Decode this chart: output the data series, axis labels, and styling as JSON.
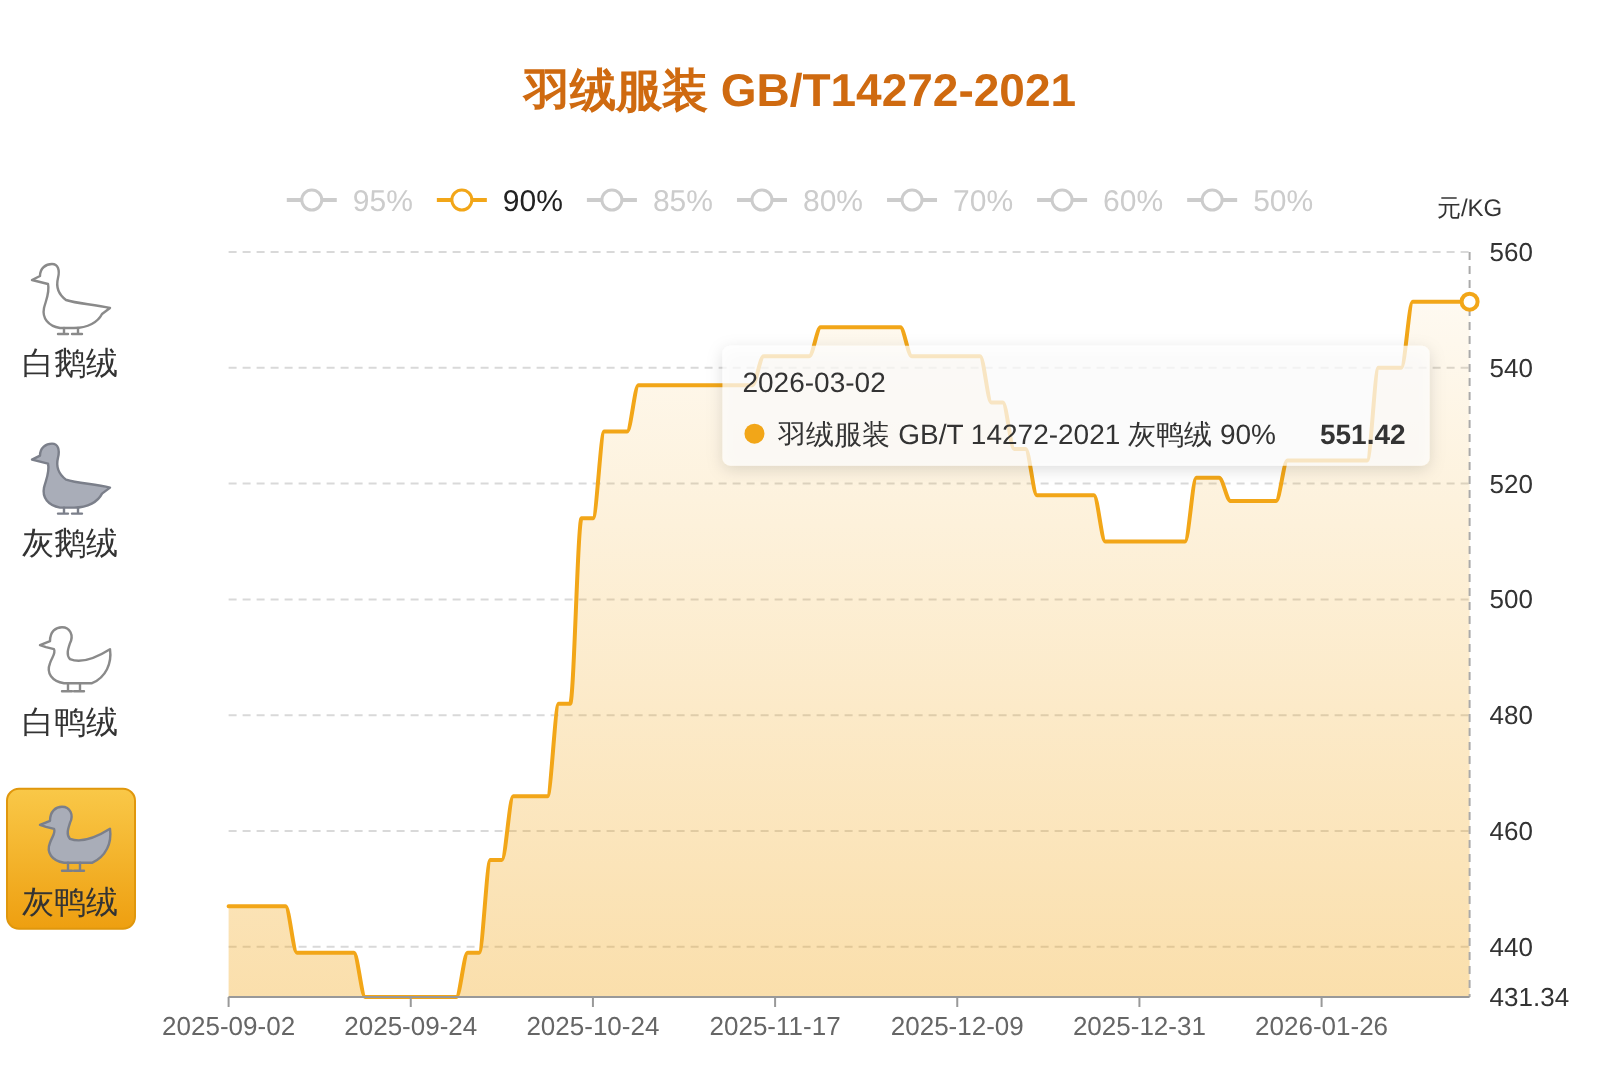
{
  "chart_data": [
    {
      "type": "area",
      "title": "羽绒服装 GB/T14272-2021",
      "ylabel": "元/KG",
      "categories": [
        "2025-09-02",
        null,
        null,
        null,
        null,
        null,
        null,
        null,
        null,
        null,
        null,
        null,
        null,
        null,
        null,
        null,
        "2025-09-24",
        null,
        null,
        null,
        null,
        null,
        null,
        null,
        null,
        null,
        null,
        null,
        null,
        null,
        null,
        null,
        "2025-10-24",
        null,
        null,
        null,
        null,
        null,
        null,
        null,
        null,
        null,
        null,
        null,
        null,
        null,
        null,
        null,
        "2025-11-17",
        null,
        null,
        null,
        null,
        null,
        null,
        null,
        null,
        null,
        null,
        null,
        null,
        null,
        null,
        null,
        "2025-12-09",
        null,
        null,
        null,
        null,
        null,
        null,
        null,
        null,
        null,
        null,
        null,
        null,
        null,
        null,
        null,
        "2025-12-31",
        null,
        null,
        null,
        null,
        null,
        null,
        null,
        null,
        null,
        null,
        null,
        null,
        null,
        null,
        null,
        "2026-01-26",
        null,
        null,
        null,
        null,
        null,
        null,
        null,
        null,
        null,
        null,
        null,
        null,
        null
      ],
      "series": [
        {
          "name": "95%",
          "color": "#cccccc",
          "values": [
            null,
            null,
            null,
            null,
            null,
            null,
            null,
            null,
            null,
            null,
            null,
            null,
            null,
            null,
            null,
            null,
            null,
            null,
            null,
            null,
            null,
            null,
            null,
            null,
            null,
            null,
            null,
            null,
            null,
            null,
            null,
            null,
            null,
            null,
            null,
            null,
            null,
            null,
            null,
            null,
            null,
            null,
            null,
            null,
            null,
            null,
            null,
            null,
            null,
            null,
            null,
            null,
            null,
            null,
            null,
            null,
            null,
            null,
            null,
            null,
            null,
            null,
            null,
            null,
            null,
            null,
            null,
            null,
            null,
            null,
            null,
            null,
            null,
            null,
            null,
            null,
            null,
            null,
            null,
            null,
            null,
            null,
            null,
            null,
            null,
            null,
            null,
            null,
            null,
            null,
            null,
            null,
            null,
            null,
            null,
            null,
            null,
            null,
            null,
            null,
            null,
            null,
            null,
            null,
            null,
            null,
            null,
            null,
            null,
            null
          ]
        },
        {
          "name": "90%",
          "color": "#f2a618",
          "values": [
            447,
            447,
            447,
            447,
            447,
            447,
            439,
            439,
            439,
            439,
            439,
            439,
            431.34,
            431.34,
            431.34,
            431.34,
            431.34,
            431.34,
            431.34,
            431.34,
            431.34,
            439,
            439,
            455,
            455,
            466,
            466,
            466,
            466,
            482,
            482,
            514,
            514,
            529,
            529,
            529,
            537,
            537,
            537,
            537,
            537,
            537,
            537,
            537,
            537,
            537,
            537,
            542,
            542,
            542,
            542,
            542,
            547,
            547,
            547,
            547,
            547,
            547,
            547,
            547,
            542,
            542,
            542,
            542,
            542,
            542,
            542,
            534,
            534,
            526,
            526,
            518,
            518,
            518,
            518,
            518,
            518,
            510,
            510,
            510,
            510,
            510,
            510,
            510,
            510,
            521,
            521,
            521,
            517,
            517,
            517,
            517,
            517,
            524,
            524,
            524,
            524,
            524,
            524,
            524,
            524,
            540,
            540,
            540,
            551.42,
            551.42,
            551.42,
            551.42,
            551.42,
            551.42
          ]
        },
        {
          "name": "85%",
          "color": "#cccccc",
          "values": [
            null,
            null,
            null,
            null,
            null,
            null,
            null,
            null,
            null,
            null,
            null,
            null,
            null,
            null,
            null,
            null,
            null,
            null,
            null,
            null,
            null,
            null,
            null,
            null,
            null,
            null,
            null,
            null,
            null,
            null,
            null,
            null,
            null,
            null,
            null,
            null,
            null,
            null,
            null,
            null,
            null,
            null,
            null,
            null,
            null,
            null,
            null,
            null,
            null,
            null,
            null,
            null,
            null,
            null,
            null,
            null,
            null,
            null,
            null,
            null,
            null,
            null,
            null,
            null,
            null,
            null,
            null,
            null,
            null,
            null,
            null,
            null,
            null,
            null,
            null,
            null,
            null,
            null,
            null,
            null,
            null,
            null,
            null,
            null,
            null,
            null,
            null,
            null,
            null,
            null,
            null,
            null,
            null,
            null,
            null,
            null,
            null,
            null,
            null,
            null,
            null,
            null,
            null,
            null,
            null,
            null,
            null,
            null,
            null,
            null
          ]
        },
        {
          "name": "80%",
          "color": "#cccccc",
          "values": [
            null,
            null,
            null,
            null,
            null,
            null,
            null,
            null,
            null,
            null,
            null,
            null,
            null,
            null,
            null,
            null,
            null,
            null,
            null,
            null,
            null,
            null,
            null,
            null,
            null,
            null,
            null,
            null,
            null,
            null,
            null,
            null,
            null,
            null,
            null,
            null,
            null,
            null,
            null,
            null,
            null,
            null,
            null,
            null,
            null,
            null,
            null,
            null,
            null,
            null,
            null,
            null,
            null,
            null,
            null,
            null,
            null,
            null,
            null,
            null,
            null,
            null,
            null,
            null,
            null,
            null,
            null,
            null,
            null,
            null,
            null,
            null,
            null,
            null,
            null,
            null,
            null,
            null,
            null,
            null,
            null,
            null,
            null,
            null,
            null,
            null,
            null,
            null,
            null,
            null,
            null,
            null,
            null,
            null,
            null,
            null,
            null,
            null,
            null,
            null,
            null,
            null,
            null,
            null,
            null,
            null,
            null,
            null,
            null,
            null
          ]
        },
        {
          "name": "70%",
          "color": "#cccccc",
          "values": [
            null,
            null,
            null,
            null,
            null,
            null,
            null,
            null,
            null,
            null,
            null,
            null,
            null,
            null,
            null,
            null,
            null,
            null,
            null,
            null,
            null,
            null,
            null,
            null,
            null,
            null,
            null,
            null,
            null,
            null,
            null,
            null,
            null,
            null,
            null,
            null,
            null,
            null,
            null,
            null,
            null,
            null,
            null,
            null,
            null,
            null,
            null,
            null,
            null,
            null,
            null,
            null,
            null,
            null,
            null,
            null,
            null,
            null,
            null,
            null,
            null,
            null,
            null,
            null,
            null,
            null,
            null,
            null,
            null,
            null,
            null,
            null,
            null,
            null,
            null,
            null,
            null,
            null,
            null,
            null,
            null,
            null,
            null,
            null,
            null,
            null,
            null,
            null,
            null,
            null,
            null,
            null,
            null,
            null,
            null,
            null,
            null,
            null,
            null,
            null,
            null,
            null,
            null,
            null,
            null,
            null,
            null,
            null,
            null,
            null
          ]
        },
        {
          "name": "60%",
          "color": "#cccccc",
          "values": [
            null,
            null,
            null,
            null,
            null,
            null,
            null,
            null,
            null,
            null,
            null,
            null,
            null,
            null,
            null,
            null,
            null,
            null,
            null,
            null,
            null,
            null,
            null,
            null,
            null,
            null,
            null,
            null,
            null,
            null,
            null,
            null,
            null,
            null,
            null,
            null,
            null,
            null,
            null,
            null,
            null,
            null,
            null,
            null,
            null,
            null,
            null,
            null,
            null,
            null,
            null,
            null,
            null,
            null,
            null,
            null,
            null,
            null,
            null,
            null,
            null,
            null,
            null,
            null,
            null,
            null,
            null,
            null,
            null,
            null,
            null,
            null,
            null,
            null,
            null,
            null,
            null,
            null,
            null,
            null,
            null,
            null,
            null,
            null,
            null,
            null,
            null,
            null,
            null,
            null,
            null,
            null,
            null,
            null,
            null,
            null,
            null,
            null,
            null,
            null,
            null,
            null,
            null,
            null,
            null,
            null,
            null,
            null,
            null,
            null
          ]
        },
        {
          "name": "50%",
          "color": "#cccccc",
          "values": [
            null,
            null,
            null,
            null,
            null,
            null,
            null,
            null,
            null,
            null,
            null,
            null,
            null,
            null,
            null,
            null,
            null,
            null,
            null,
            null,
            null,
            null,
            null,
            null,
            null,
            null,
            null,
            null,
            null,
            null,
            null,
            null,
            null,
            null,
            null,
            null,
            null,
            null,
            null,
            null,
            null,
            null,
            null,
            null,
            null,
            null,
            null,
            null,
            null,
            null,
            null,
            null,
            null,
            null,
            null,
            null,
            null,
            null,
            null,
            null,
            null,
            null,
            null,
            null,
            null,
            null,
            null,
            null,
            null,
            null,
            null,
            null,
            null,
            null,
            null,
            null,
            null,
            null,
            null,
            null,
            null,
            null,
            null,
            null,
            null,
            null,
            null,
            null,
            null,
            null,
            null,
            null,
            null,
            null,
            null,
            null,
            null,
            null,
            null,
            null,
            null,
            null,
            null,
            null,
            null,
            null,
            null,
            null,
            null,
            null
          ]
        }
      ],
      "ylim": [
        431.34,
        560
      ],
      "yticks": [
        431.34,
        440,
        460,
        480,
        500,
        520,
        540,
        560
      ],
      "grid": "y",
      "legend": "top",
      "annotations": [
        "2026-03-02",
        "羽绒服装 GB/T 14272-2021 灰鸭绒 90%",
        "551.42"
      ]
    },
    {
      "type": "other",
      "annotations": [
        "白鹅绒",
        "灰鹅绒",
        "白鸭绒",
        "灰鸭绒"
      ]
    }
  ]
}
